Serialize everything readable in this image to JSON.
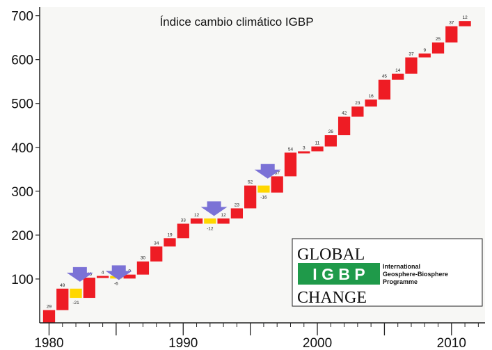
{
  "chart_data": {
    "type": "bar",
    "subtype": "waterfall",
    "title": "Índice cambio climático IGBP",
    "xlabel": "",
    "ylabel": "",
    "ylim": [
      0,
      720
    ],
    "xlim": [
      1979.3,
      2012.5
    ],
    "y_ticks": [
      100,
      200,
      300,
      400,
      500,
      600,
      700
    ],
    "x_ticks": [
      1980,
      1990,
      2000,
      2010
    ],
    "grid": false,
    "colors": {
      "increase": "#ee1c24",
      "decrease": "#ffd700",
      "arrow": "#7b72d6"
    },
    "steps": [
      {
        "year": 1980,
        "change": 29,
        "label": "29"
      },
      {
        "year": 1981,
        "change": 49,
        "label": "49"
      },
      {
        "year": 1982,
        "change": -21,
        "label": "-21"
      },
      {
        "year": 1983,
        "change": 46,
        "label": "46"
      },
      {
        "year": 1984,
        "change": 4,
        "label": "4"
      },
      {
        "year": 1985,
        "change": -6,
        "label": "-6"
      },
      {
        "year": 1986,
        "change": 9,
        "label": "9"
      },
      {
        "year": 1987,
        "change": 30,
        "label": "30"
      },
      {
        "year": 1988,
        "change": 34,
        "label": "34"
      },
      {
        "year": 1989,
        "change": 19,
        "label": "19"
      },
      {
        "year": 1990,
        "change": 33,
        "label": "33"
      },
      {
        "year": 1991,
        "change": 12,
        "label": "12"
      },
      {
        "year": 1992,
        "change": -12,
        "label": "-12"
      },
      {
        "year": 1993,
        "change": 12,
        "label": "12"
      },
      {
        "year": 1994,
        "change": 23,
        "label": "23"
      },
      {
        "year": 1995,
        "change": 52,
        "label": "52"
      },
      {
        "year": 1996,
        "change": -16,
        "label": "-16"
      },
      {
        "year": 1997,
        "change": 37,
        "label": "37"
      },
      {
        "year": 1998,
        "change": 54,
        "label": "54"
      },
      {
        "year": 1999,
        "change": 3,
        "label": "3"
      },
      {
        "year": 2000,
        "change": 11,
        "label": "11"
      },
      {
        "year": 2001,
        "change": 26,
        "label": "26"
      },
      {
        "year": 2002,
        "change": 42,
        "label": "42"
      },
      {
        "year": 2003,
        "change": 23,
        "label": "23"
      },
      {
        "year": 2004,
        "change": 16,
        "label": "16"
      },
      {
        "year": 2005,
        "change": 45,
        "label": "45"
      },
      {
        "year": 2006,
        "change": 14,
        "label": "14"
      },
      {
        "year": 2007,
        "change": 37,
        "label": "37"
      },
      {
        "year": 2008,
        "change": 9,
        "label": "9"
      },
      {
        "year": 2009,
        "change": 25,
        "label": "25"
      },
      {
        "year": 2010,
        "change": 37,
        "label": "37"
      },
      {
        "year": 2011,
        "change": 12,
        "label": "12"
      }
    ],
    "arrows": [
      {
        "year": 1982.3,
        "y": 108
      },
      {
        "year": 1985.2,
        "y": 112
      },
      {
        "year": 1992.3,
        "y": 258
      },
      {
        "year": 1996.3,
        "y": 343
      }
    ],
    "logo": {
      "line1": "GLOBAL",
      "igbp": "I G B P",
      "line3": "CHANGE",
      "org_line1": "International",
      "org_line2": "Geosphere-Biosphere",
      "org_line3": "Programme"
    }
  }
}
